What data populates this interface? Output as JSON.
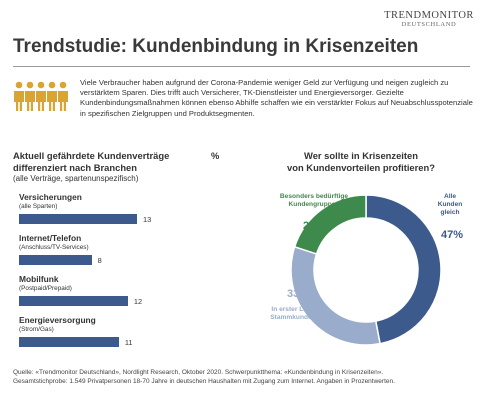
{
  "brand": {
    "name": "TRENDMONITOR",
    "sub": "DEUTSCHLAND"
  },
  "title": "Trendstudie: Kundenbindung in Krisenzeiten",
  "intro": "Viele Verbraucher haben aufgrund der Corona-Pandemie weniger Geld zur Verfügung und neigen zugleich zu verstärktem Sparen. Dies trifft auch Versicherer, TK-Dienstleister und Energieversorger. Gezielte Kundenbindungsmaßnahmen können ebenso Abhilfe schaffen wie ein verstärkter Fokus auf Neuabschlusspotenziale in spezifischen Zielgruppen und Produktsegmenten.",
  "left_chart": {
    "title_lines": [
      "Aktuell gefährdete Kundenverträge",
      "differenziert nach Branchen"
    ],
    "unit": "%",
    "subtitle": "(alle Verträge, spartenunspezifisch)"
  },
  "right_chart": {
    "title_lines": [
      "Wer sollte in Krisenzeiten",
      "von Kundenvorteilen profitieren?"
    ]
  },
  "chart_data": [
    {
      "type": "bar",
      "orientation": "horizontal",
      "categories": [
        "Versicherungen",
        "Internet/Telefon",
        "Mobilfunk",
        "Energieversorgung"
      ],
      "category_sublabels": [
        "(alle Sparten)",
        "(Anschluss/TV-Services)",
        "(Postpaid/Prepaid)",
        "(Strom/Gas)"
      ],
      "values": [
        13,
        8,
        12,
        11
      ],
      "value_labels": [
        "13",
        "8",
        "12",
        "11"
      ],
      "xlim": [
        0,
        13
      ],
      "color": "#3d5a8c"
    },
    {
      "type": "pie",
      "donut": true,
      "slices": [
        {
          "label_lines": [
            "Alle",
            "Kunden",
            "gleich"
          ],
          "value": 47,
          "value_label": "47%",
          "color": "#3d5a8c"
        },
        {
          "label_lines": [
            "In erster Linie",
            "Stammkunden"
          ],
          "value": 33,
          "value_label": "33%",
          "color": "#9aaccb"
        },
        {
          "label_lines": [
            "Besonders bedürftige",
            "Kundengruppen"
          ],
          "value": 20,
          "value_label": "20%",
          "color": "#3e8a4c"
        }
      ]
    }
  ],
  "source_lines": [
    "Quelle: «Trendmonitor Deutschland», Nordlight Research, Oktober 2020. Schwerpunktthema: «Kundenbindung in Krisenzeiten».",
    "Gesamtstichprobe: 1.549 Privatpersonen 18-70 Jahre in deutschen Haushalten mit Zugang zum Internet. Angaben in Prozentwerten."
  ],
  "colors": {
    "accent": "#c0392b",
    "icon": "#d9a431"
  }
}
